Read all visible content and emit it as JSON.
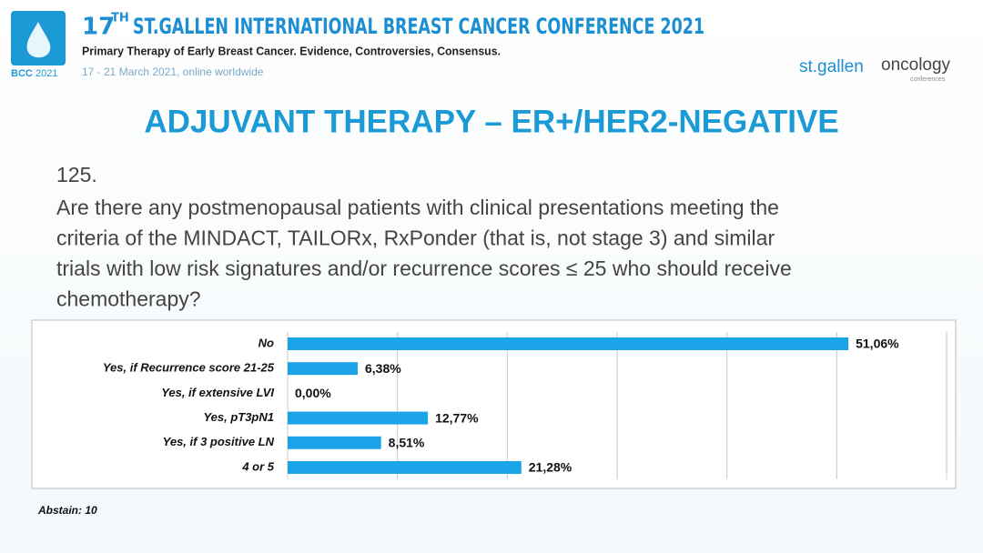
{
  "header": {
    "edition_number": "17",
    "edition_suffix": "TH",
    "title": "ST.GALLEN INTERNATIONAL BREAST CANCER CONFERENCE 2021",
    "subtitle": "Primary Therapy of Early Breast Cancer. Evidence, Controversies, Consensus.",
    "dates": "17 - 21 March 2021, online worldwide",
    "logo_text": "BCC",
    "logo_year": "2021",
    "brand_part1": "st.gallen",
    "brand_part2": "oncology",
    "brand_part3": "conferences"
  },
  "slide_title": "ADJUVANT THERAPY – ER+/HER2-NEGATIVE",
  "question": {
    "number": "125.",
    "lines": [
      "Are there any postmenopausal patients with clinical presentations meeting the",
      "criteria of the MINDACT, TAILORx, RxPonder (that is, not stage 3) and similar",
      "trials with low risk signatures and/or recurrence scores ≤ 25 who should receive",
      "chemotherapy?"
    ]
  },
  "chart_data": {
    "type": "bar",
    "orientation": "horizontal",
    "color": "#1aa3e6",
    "categories": [
      "No",
      "Yes, if Recurrence score 21-25",
      "Yes, if extensive LVI",
      "Yes, pT3pN1",
      "Yes, if 3 positive LN",
      "4 or 5"
    ],
    "values": [
      51.06,
      6.38,
      0.0,
      12.77,
      8.51,
      21.28
    ],
    "value_labels": [
      "51,06%",
      "6,38%",
      "0,00%",
      "12,77%",
      "8,51%",
      "21,28%"
    ],
    "xlim": [
      0,
      60
    ],
    "xticks": [
      0,
      10,
      20,
      30,
      40,
      50,
      60
    ],
    "grid": true
  },
  "footnote": "Abstain: 10"
}
